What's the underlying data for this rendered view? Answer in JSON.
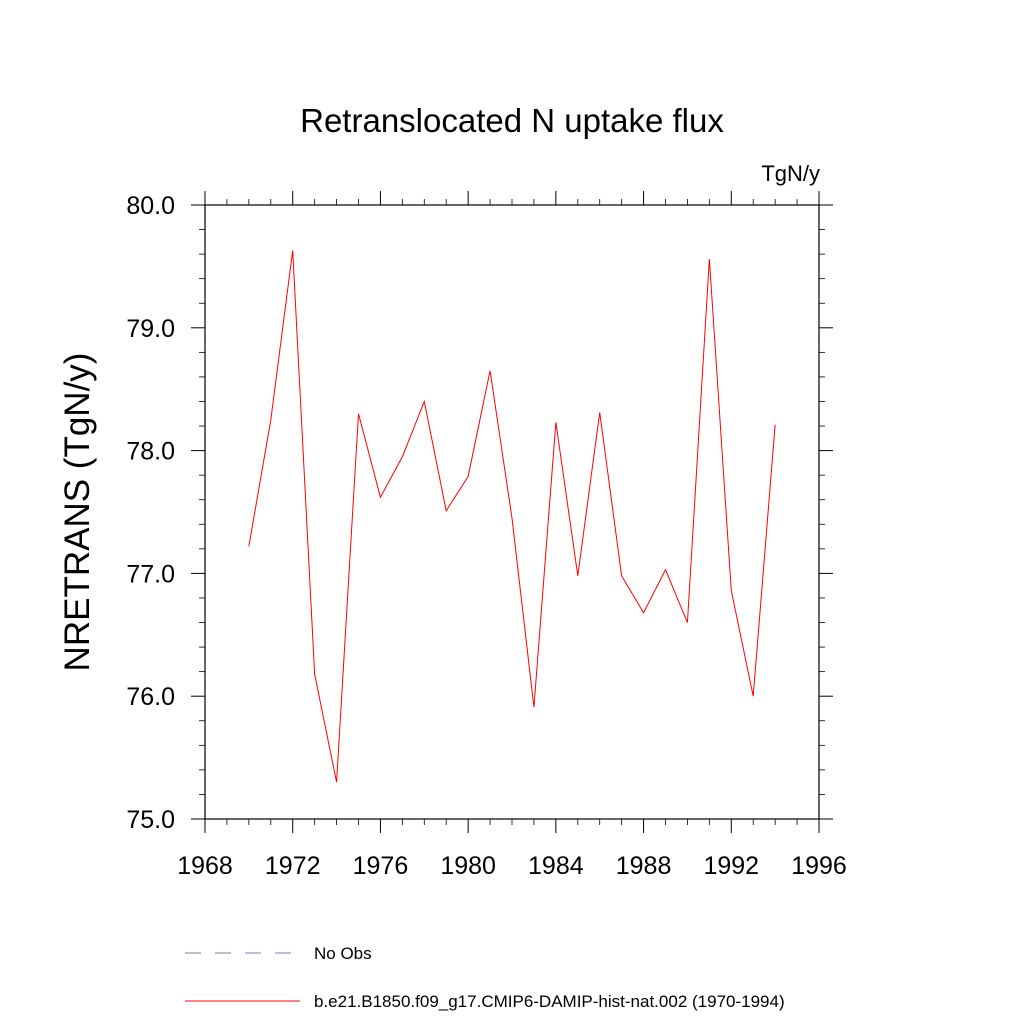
{
  "chart_data": {
    "type": "line",
    "title": "Retranslocated N uptake flux",
    "units": "TgN/y",
    "ylabel": "NRETRANS  (TgN/y)",
    "xlabel": "",
    "xlim": [
      1968,
      1996
    ],
    "ylim": [
      75.0,
      80.0
    ],
    "xticks": [
      "1968",
      "1972",
      "1976",
      "1980",
      "1984",
      "1988",
      "1992",
      "1996"
    ],
    "yticks": [
      "75.0",
      "76.0",
      "77.0",
      "78.0",
      "79.0",
      "80.0"
    ],
    "grid": false,
    "legend_placement": "bottom",
    "series": [
      {
        "name": "b.e21.B1850.f09_g17.CMIP6-DAMIP-hist-nat.002 (1970-1994)",
        "color": "#ff0000",
        "style": "solid",
        "x": [
          1970,
          1971,
          1972,
          1973,
          1974,
          1975,
          1976,
          1977,
          1978,
          1979,
          1980,
          1981,
          1982,
          1983,
          1984,
          1985,
          1986,
          1987,
          1988,
          1989,
          1990,
          1991,
          1992,
          1993,
          1994
        ],
        "y": [
          77.22,
          78.25,
          79.63,
          76.18,
          75.3,
          78.3,
          77.62,
          77.95,
          78.4,
          77.51,
          77.79,
          78.65,
          77.45,
          75.91,
          78.23,
          76.98,
          78.31,
          76.98,
          76.68,
          77.03,
          76.6,
          79.56,
          76.86,
          76.0,
          78.21
        ]
      }
    ],
    "legend": [
      {
        "name": "No Obs",
        "color": "#7777cc",
        "style": "dashed"
      },
      {
        "name": "b.e21.B1850.f09_g17.CMIP6-DAMIP-hist-nat.002 (1970-1994)",
        "color": "#ff0000",
        "style": "solid"
      }
    ]
  }
}
